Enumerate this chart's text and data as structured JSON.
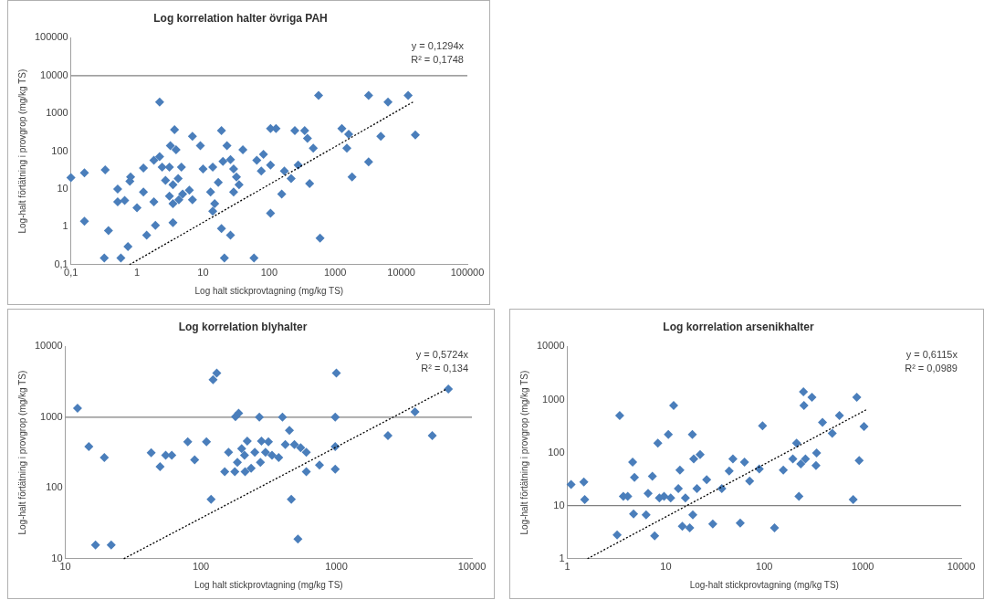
{
  "chart_data": [
    {
      "type": "scatter",
      "title": "Log korrelation halter övriga PAH",
      "xlabel": "Log halt stickprovtagning (mg/kg TS)",
      "ylabel": "Log-halt förtätning i provgrop (mg/kg TS)",
      "log": "xy",
      "grid": false,
      "legend": false,
      "xlim": [
        0.1,
        100000
      ],
      "xticks": [
        {
          "value": 0.1,
          "label": "0,1"
        },
        1,
        10,
        100,
        1000,
        10000,
        100000
      ],
      "ylim": [
        0.1,
        100000
      ],
      "yticks": [
        {
          "value": 0.1,
          "label": "0,1"
        },
        1,
        10,
        100,
        1000,
        10000,
        100000
      ],
      "ref_lines": [
        {
          "axis": "y",
          "value": 10000,
          "color": "#808080"
        }
      ],
      "annotations": [
        "y = 0,1294x",
        "R² = 0,1748"
      ],
      "series": [
        {
          "type": "scatter",
          "color": "#4a7ebb",
          "marker": "diamond",
          "x": [
            0.1,
            0.16,
            0.16,
            0.33,
            0.37,
            0.32,
            0.57,
            0.73,
            0.51,
            0.51,
            0.65,
            0.8,
            0.78,
            1,
            1.25,
            1.25,
            1.4,
            1.8,
            1.9,
            1.8,
            2.2,
            2.2,
            2.4,
            2.7,
            3.1,
            3.2,
            3.7,
            3.9,
            3.5,
            3.1,
            3.5,
            3.5,
            4.2,
            4.7,
            4.3,
            4.9,
            6.2,
            6.9,
            6.9,
            9.1,
            10,
            13,
            14,
            17,
            15,
            14,
            19,
            19,
            26,
            21,
            23,
            20,
            26,
            29,
            32,
            35,
            29,
            40,
            59,
            65,
            82,
            76,
            105,
            105,
            105,
            127,
            155,
            170,
            215,
            245,
            275,
            345,
            380,
            410,
            465,
            560,
            590,
            1260,
            1600,
            1500,
            1800,
            3200,
            3200,
            4900,
            6300,
            12700,
            16300
          ],
          "values": [
            20,
            27,
            1.4,
            32,
            0.8,
            0.15,
            0.15,
            0.3,
            10,
            4.6,
            5,
            21,
            16,
            3.2,
            36,
            8.3,
            0.6,
            4.6,
            1.1,
            58,
            72,
            2000,
            38,
            17,
            38,
            140,
            370,
            110,
            13,
            6.5,
            4.1,
            1.3,
            19,
            38,
            5.2,
            7.4,
            9.3,
            5.2,
            250,
            140,
            34,
            8.3,
            38,
            15,
            4.1,
            2.6,
            350,
            0.9,
            0.6,
            0.15,
            140,
            54,
            60,
            34,
            21,
            13,
            8.3,
            110,
            0.15,
            58,
            83,
            30,
            43,
            2.3,
            400,
            400,
            7.4,
            30,
            19,
            350,
            43,
            350,
            220,
            14,
            120,
            3000,
            0.5,
            400,
            280,
            120,
            21,
            52,
            3000,
            250,
            2000,
            3000,
            270
          ]
        },
        {
          "type": "line",
          "color": "#000000",
          "line_style": "dotted",
          "marker": "none",
          "x": [
            0.77,
            15000
          ],
          "values": [
            0.1,
            2000
          ]
        }
      ]
    },
    {
      "type": "scatter",
      "title": "Log korrelation blyhalter",
      "xlabel": "Log halt stickprovtagning (mg/kg TS)",
      "ylabel": "Log-halt förtätning i provgrop (mg/kg TS)",
      "log": "xy",
      "grid": false,
      "legend": false,
      "xlim": [
        10,
        10000
      ],
      "xticks": [
        10,
        100,
        1000,
        10000
      ],
      "ylim": [
        10,
        10000
      ],
      "yticks": [
        10,
        100,
        1000,
        10000
      ],
      "ref_lines": [
        {
          "axis": "y",
          "value": 1000,
          "color": "#808080"
        }
      ],
      "annotations": [
        "y = 0,5724x",
        "R² = 0,134"
      ],
      "series": [
        {
          "type": "scatter",
          "color": "#4a7ebb",
          "marker": "diamond",
          "x": [
            12.3,
            14.9,
            19.4,
            16.7,
            21.8,
            43,
            50,
            55,
            61,
            80,
            90,
            110,
            119,
            123,
            131,
            150,
            160,
            180,
            190,
            178,
            186,
            200,
            210,
            220,
            212,
            235,
            250,
            270,
            275,
            280,
            300,
            315,
            335,
            375,
            400,
            420,
            450,
            465,
            490,
            520,
            545,
            600,
            600,
            750,
            980,
            980,
            980,
            1000,
            2400,
            3800,
            5100,
            6700
          ],
          "values": [
            1340,
            385,
            270,
            15.6,
            15.6,
            315,
            200,
            290,
            290,
            450,
            250,
            450,
            69,
            3400,
            4200,
            170,
            320,
            1020,
            1140,
            170,
            230,
            360,
            290,
            460,
            170,
            190,
            320,
            1000,
            230,
            460,
            320,
            450,
            290,
            270,
            1000,
            410,
            650,
            69,
            410,
            19,
            370,
            320,
            170,
            210,
            1000,
            385,
            185,
            4200,
            550,
            1190,
            550,
            2500
          ]
        },
        {
          "type": "line",
          "color": "#000000",
          "line_style": "dotted",
          "marker": "none",
          "x": [
            27,
            6500
          ],
          "values": [
            10,
            2500
          ]
        }
      ]
    },
    {
      "type": "scatter",
      "title": "Log korrelation arsenikhalter",
      "xlabel": "Log-halt stickprovtagning (mg/kg TS)",
      "ylabel": "Log-halt förtätning i provgrop (mg/kg TS)",
      "log": "xy",
      "grid": false,
      "legend": false,
      "xlim": [
        1,
        10000
      ],
      "xticks": [
        1,
        10,
        100,
        1000,
        10000
      ],
      "ylim": [
        1,
        10000
      ],
      "yticks": [
        1,
        10,
        100,
        1000,
        10000
      ],
      "ref_lines": [
        {
          "axis": "y",
          "value": 10,
          "color": "#808080"
        }
      ],
      "annotations": [
        "y = 0,6115x",
        "R² = 0,0989"
      ],
      "series": [
        {
          "type": "scatter",
          "color": "#4a7ebb",
          "marker": "diamond",
          "x": [
            1.09,
            1.47,
            1.5,
            3.4,
            3.2,
            3.7,
            4.1,
            4.6,
            4.8,
            4.7,
            6.3,
            6.6,
            7.3,
            7.7,
            8.3,
            8.6,
            9.6,
            10.6,
            11.2,
            12,
            13.4,
            13.9,
            14.7,
            15.8,
            17.5,
            18.6,
            18.8,
            19.2,
            20.7,
            22.3,
            26,
            30,
            37,
            44,
            48,
            57,
            63,
            71,
            89,
            96,
            127,
            156,
            195,
            213,
            225,
            235,
            250,
            253,
            262,
            305,
            340,
            335,
            390,
            490,
            580,
            800,
            870,
            920,
            1030
          ],
          "values": [
            25,
            28,
            13,
            500,
            2.8,
            15,
            15,
            66,
            34,
            7,
            6.7,
            17,
            36,
            2.7,
            150,
            14,
            15,
            220,
            14,
            770,
            21,
            47,
            4.1,
            14,
            3.8,
            220,
            6.7,
            76,
            21,
            92,
            31,
            4.5,
            21,
            45,
            76,
            4.7,
            66,
            29,
            49,
            320,
            3.8,
            47,
            76,
            150,
            15,
            61,
            1400,
            770,
            76,
            1100,
            98,
            57,
            370,
            230,
            500,
            13,
            1100,
            71,
            310
          ]
        },
        {
          "type": "line",
          "color": "#000000",
          "line_style": "dotted",
          "marker": "none",
          "x": [
            1.6,
            1100
          ],
          "values": [
            1,
            650
          ]
        }
      ]
    }
  ]
}
